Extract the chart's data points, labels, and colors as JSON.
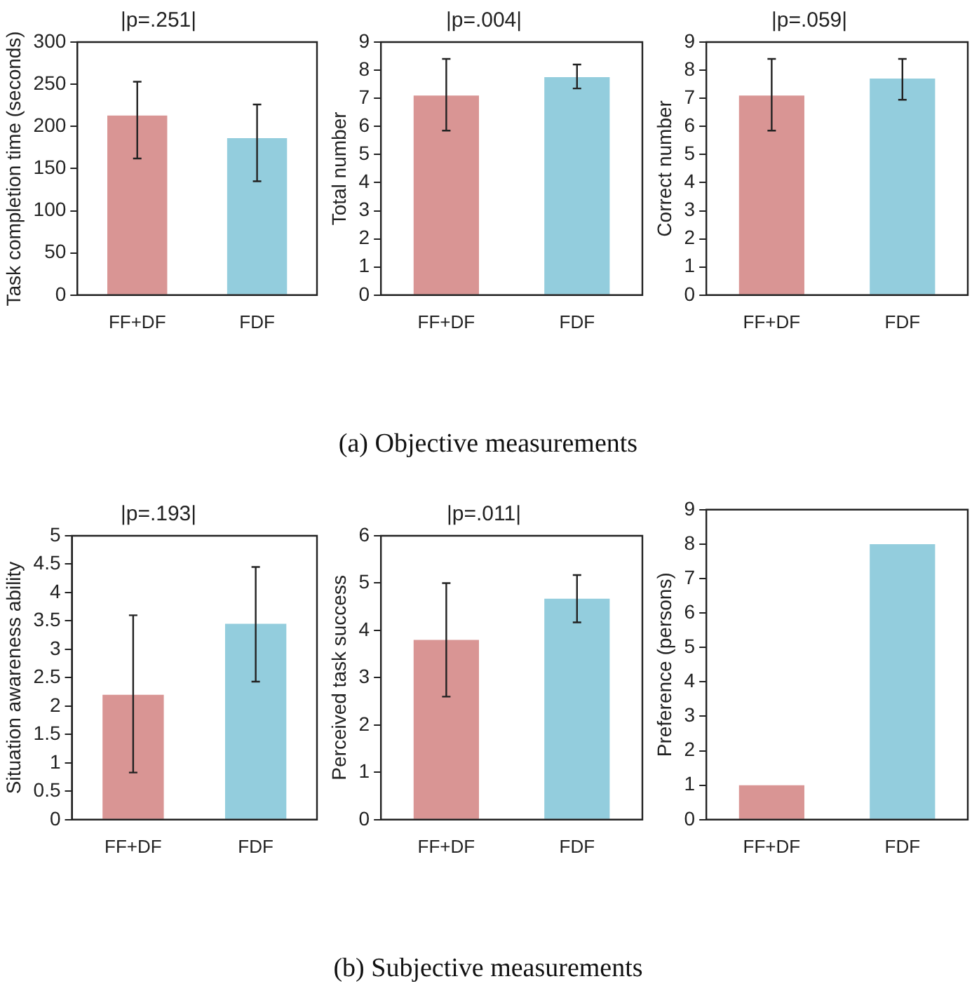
{
  "chart_data": [
    {
      "type": "bar",
      "title": "|p=.251|",
      "categories": [
        "FF+DF",
        "FDF"
      ],
      "values": [
        213,
        186
      ],
      "colors": [
        "#d99594",
        "#93cddd"
      ],
      "errors": [
        [
          162,
          253
        ],
        [
          135,
          226
        ]
      ],
      "ylabel": "Task completion time (seconds)",
      "ylim": [
        0,
        300
      ],
      "yticks": [
        0,
        50,
        100,
        150,
        200,
        250,
        300
      ],
      "grid": false
    },
    {
      "type": "bar",
      "title": "|p=.004|",
      "categories": [
        "FF+DF",
        "FDF"
      ],
      "values": [
        7.1,
        7.75
      ],
      "colors": [
        "#d99594",
        "#93cddd"
      ],
      "errors": [
        [
          5.85,
          8.4
        ],
        [
          7.35,
          8.2
        ]
      ],
      "ylabel": "Total number",
      "ylim": [
        0,
        9
      ],
      "yticks": [
        0,
        1,
        2,
        3,
        4,
        5,
        6,
        7,
        8,
        9
      ],
      "grid": false,
      "annotations": [
        "(a) Objective measurements"
      ]
    },
    {
      "type": "bar",
      "title": "|p=.059|",
      "categories": [
        "FF+DF",
        "FDF"
      ],
      "values": [
        7.1,
        7.7
      ],
      "colors": [
        "#d99594",
        "#93cddd"
      ],
      "errors": [
        [
          5.85,
          8.4
        ],
        [
          6.95,
          8.4
        ]
      ],
      "ylabel": "Correct number",
      "ylim": [
        0,
        9
      ],
      "yticks": [
        0,
        1,
        2,
        3,
        4,
        5,
        6,
        7,
        8,
        9
      ],
      "grid": false
    },
    {
      "type": "bar",
      "title": "|p=.193|",
      "categories": [
        "FF+DF",
        "FDF"
      ],
      "values": [
        2.2,
        3.45
      ],
      "colors": [
        "#d99594",
        "#93cddd"
      ],
      "errors": [
        [
          0.83,
          3.6
        ],
        [
          2.43,
          4.45
        ]
      ],
      "ylabel": "Situation awareness ability",
      "ylim": [
        0,
        5
      ],
      "yticks": [
        0,
        0.5,
        1,
        1.5,
        2,
        2.5,
        3,
        3.5,
        4,
        4.5,
        5
      ],
      "grid": false
    },
    {
      "type": "bar",
      "title": "|p=.011|",
      "categories": [
        "FF+DF",
        "FDF"
      ],
      "values": [
        3.8,
        4.67
      ],
      "colors": [
        "#d99594",
        "#93cddd"
      ],
      "errors": [
        [
          2.6,
          5.0
        ],
        [
          4.17,
          5.17
        ]
      ],
      "ylabel": "Perceived task success",
      "ylim": [
        0,
        6
      ],
      "yticks": [
        0,
        1,
        2,
        3,
        4,
        5,
        6
      ],
      "grid": false,
      "annotations": [
        "(b) Subjective measurements"
      ]
    },
    {
      "type": "bar",
      "categories": [
        "FF+DF",
        "FDF"
      ],
      "values": [
        1,
        8
      ],
      "colors": [
        "#d99594",
        "#93cddd"
      ],
      "ylabel": "Preference (persons)",
      "ylim": [
        0,
        9
      ],
      "yticks": [
        0,
        1,
        2,
        3,
        4,
        5,
        6,
        7,
        8,
        9
      ],
      "grid": false
    }
  ]
}
